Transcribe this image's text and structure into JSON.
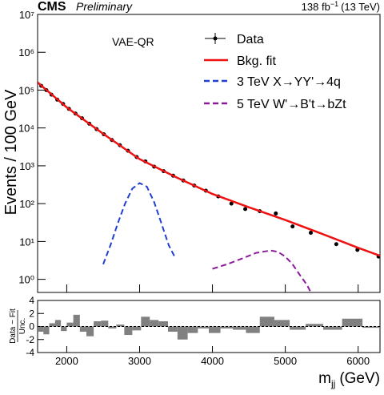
{
  "chart_data": [
    {
      "type": "line",
      "experiment": "CMS",
      "status": "Preliminary",
      "lumi": "138 fb",
      "lumi_exp": "−1",
      "lumi_energy": "(13 TeV)",
      "annotation": "VAE-QR",
      "ylabel": "Events / 100 GeV",
      "log_y": true,
      "xlim": [
        1600,
        6300
      ],
      "xticks": [
        2000,
        3000,
        4000,
        5000,
        6000
      ],
      "ylim": [
        0.45,
        10000000
      ],
      "yticks": [
        {
          "value": 1,
          "label": "10⁰"
        },
        {
          "value": 10,
          "label": "10¹"
        },
        {
          "value": 100,
          "label": "10²"
        },
        {
          "value": 1000,
          "label": "10³"
        },
        {
          "value": 10000,
          "label": "10⁴"
        },
        {
          "value": 100000,
          "label": "10⁵"
        },
        {
          "value": 1000000,
          "label": "10⁶"
        },
        {
          "value": 10000000,
          "label": "10⁷"
        }
      ],
      "series": [
        {
          "name": "Data",
          "color": "#000000",
          "style": "points",
          "x": [
            1650,
            1720,
            1790,
            1870,
            1950,
            2030,
            2120,
            2210,
            2310,
            2410,
            2510,
            2620,
            2730,
            2840,
            2960,
            3080,
            3200,
            3330,
            3460,
            3600,
            3750,
            3910,
            4080,
            4260,
            4450,
            4650,
            4870,
            5100,
            5350,
            5700,
            5990,
            6280
          ],
          "values": [
            130000,
            100000,
            76000,
            56000,
            43000,
            32000,
            24000,
            18000,
            13000,
            9300,
            6800,
            4800,
            3500,
            2500,
            1700,
            1300,
            950,
            720,
            550,
            410,
            300,
            220,
            155,
            100,
            72,
            63,
            55,
            25,
            17,
            8.5,
            6,
            4
          ]
        },
        {
          "name": "Bkg. fit",
          "color": "#ee1111",
          "style": "solid",
          "x": [
            1600,
            2000,
            2500,
            3000,
            3500,
            4000,
            4500,
            5000,
            5500,
            6000,
            6300
          ],
          "values": [
            160000,
            35000,
            7000,
            1500,
            500,
            180,
            80,
            37,
            16,
            6.8,
            4.2
          ]
        },
        {
          "name": "3 TeV X→YY'→4q",
          "color": "#1f3fd1",
          "style": "dashed",
          "x": [
            2500,
            2600,
            2700,
            2800,
            2900,
            3000,
            3100,
            3200,
            3300,
            3400,
            3480
          ],
          "values": [
            2.5,
            8,
            30,
            100,
            250,
            350,
            280,
            110,
            30,
            8,
            4
          ]
        },
        {
          "name": "5 TeV W'→B't→bZt",
          "color": "#8b1a9b",
          "style": "dashed",
          "x": [
            4000,
            4200,
            4400,
            4600,
            4800,
            4900,
            5000,
            5100,
            5200,
            5300,
            5350
          ],
          "values": [
            1.9,
            2.5,
            3.5,
            5,
            5.8,
            5.3,
            4,
            2.5,
            1.3,
            0.7,
            0.45
          ]
        }
      ]
    },
    {
      "type": "histogram",
      "ylabel_top": "Data − Fit",
      "ylabel_bottom": "Unc.",
      "xlabel": "m",
      "xlabel_sub": "jj",
      "xlabel_unit": "(GeV)",
      "xlim": [
        1600,
        6300
      ],
      "xticks": [
        2000,
        3000,
        4000,
        5000,
        6000
      ],
      "ylim": [
        -4,
        4
      ],
      "yticks": [
        -4,
        -2,
        0,
        2,
        4
      ],
      "color": "#808080",
      "bins": [
        1600,
        1680,
        1760,
        1840,
        1920,
        2000,
        2090,
        2180,
        2270,
        2370,
        2470,
        2570,
        2680,
        2790,
        2900,
        3020,
        3140,
        3260,
        3390,
        3520,
        3660,
        3800,
        3950,
        4110,
        4280,
        4460,
        4650,
        4850,
        5060,
        5280,
        5520,
        5780,
        6060,
        6300
      ],
      "values": [
        -0.8,
        -1.2,
        0.5,
        1,
        -0.7,
        0.6,
        1.8,
        -0.8,
        -1.5,
        0.8,
        0.9,
        -0.3,
        0.3,
        -1.3,
        -0.6,
        1.5,
        1,
        0.8,
        -0.8,
        -2,
        -1,
        -0.3,
        -1,
        -0.3,
        -0.5,
        -1,
        1.5,
        1,
        -0.5,
        0.4,
        -0.5,
        1.2,
        -0.2
      ]
    }
  ]
}
